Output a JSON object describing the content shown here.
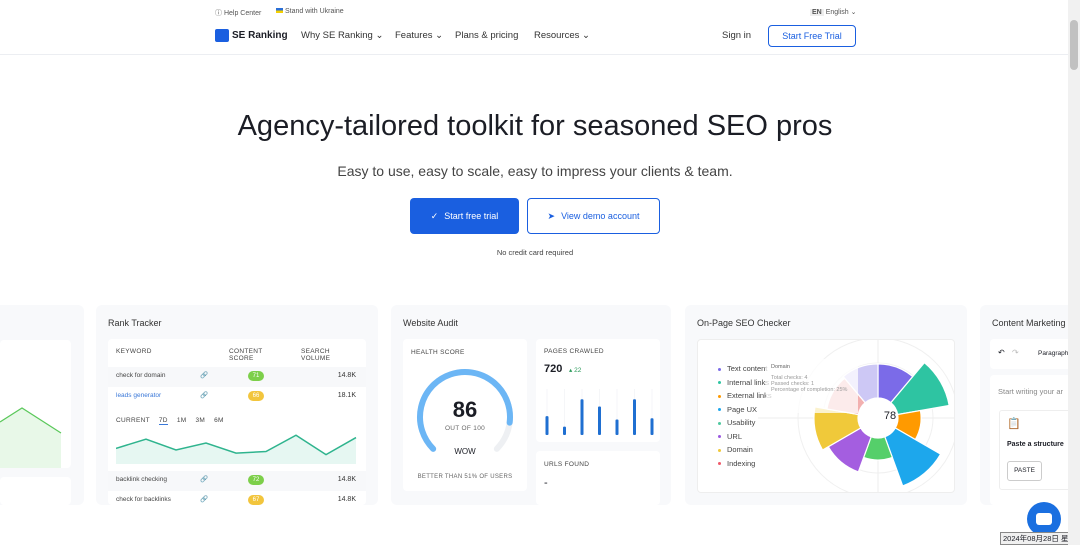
{
  "topbar": {
    "help": "Help Center",
    "ukraine": "Stand with Ukraine",
    "lang_code": "EN",
    "lang": "English"
  },
  "nav": {
    "logo": "SE Ranking",
    "items": [
      "Why SE Ranking",
      "Features",
      "Plans & pricing",
      "Resources"
    ],
    "sign_in": "Sign in",
    "cta": "Start Free Trial"
  },
  "hero": {
    "title": "Agency-tailored toolkit for seasoned SEO pros",
    "subtitle": "Easy to use, easy to scale, easy to impress your clients & team.",
    "primary": "Start free trial",
    "secondary": "View demo account",
    "note": "No credit card required"
  },
  "rank_tracker": {
    "title": "Rank Tracker",
    "headers": [
      "KEYWORD",
      "CONTENT SCORE",
      "SEARCH VOLUME"
    ],
    "rows": [
      {
        "keyword": "check for domain",
        "score": "71",
        "volume": "14.8K",
        "color": "#7dcf4a"
      },
      {
        "keyword": "leads generator",
        "score": "66",
        "volume": "18.1K",
        "color": "#f2c53d"
      },
      {
        "keyword": "backlink checking",
        "score": "72",
        "volume": "14.8K",
        "color": "#7dcf4a"
      },
      {
        "keyword": "check for backlinks",
        "score": "67",
        "volume": "14.8K",
        "color": "#f2c53d"
      }
    ],
    "periods": [
      "CURRENT",
      "7D",
      "1M",
      "3M",
      "6M"
    ],
    "active_period": "7D",
    "trend": [
      50,
      62,
      48,
      57,
      44,
      46,
      67,
      42,
      64
    ]
  },
  "audit": {
    "title": "Website Audit",
    "health_label": "HEALTH SCORE",
    "score": "86",
    "out_of": "OUT OF 100",
    "wow": "WOW",
    "better": "BETTER THAN 51% OF USERS",
    "score_value": 86,
    "pages_label": "PAGES CRAWLED",
    "pages": "720",
    "pages_delta": "22",
    "bars": [
      45,
      20,
      85,
      68,
      37,
      85,
      40
    ],
    "urls_label": "URLS FOUND",
    "urls": "-"
  },
  "onpage": {
    "title": "On-Page SEO Checker",
    "center": "78",
    "legend": [
      {
        "label": "Text content",
        "color": "#7b6be8"
      },
      {
        "label": "Internal links",
        "color": "#2ec4a2"
      },
      {
        "label": "External links",
        "color": "#ff9a00"
      },
      {
        "label": "Page UX",
        "color": "#1da7ec"
      },
      {
        "label": "Usability",
        "color": "#4fc8a0"
      },
      {
        "label": "URL",
        "color": "#9b59e0"
      },
      {
        "label": "Domain",
        "color": "#f0c93a"
      },
      {
        "label": "Indexing",
        "color": "#ef5a6a"
      }
    ],
    "segments": [
      {
        "color": "#7b6be8",
        "level": 62
      },
      {
        "color": "#2ec4a2",
        "level": 95
      },
      {
        "color": "#ff9a00",
        "level": 42
      },
      {
        "color": "#1da7ec",
        "level": 95
      },
      {
        "color": "#55cf6a",
        "level": 40
      },
      {
        "color": "#a45ee0",
        "level": 68
      },
      {
        "color": "#f0c93a",
        "level": 80
      },
      {
        "color": "#f2b0b0",
        "level": 58
      },
      {
        "color": "#cdc8f5",
        "level": 62
      }
    ],
    "tooltip": {
      "title": "Domain",
      "total": "Total checks: 4",
      "passed": "Passed checks: 1",
      "pct": "Percentage of completion: 25%"
    }
  },
  "content": {
    "title": "Content Marketing",
    "paragraph": "Paragraph",
    "placeholder": "Start writing your ar",
    "paste_title": "Paste a structure",
    "paste": "PASTE"
  },
  "taskbar": {
    "date": "2024年08月28日 星期三"
  }
}
